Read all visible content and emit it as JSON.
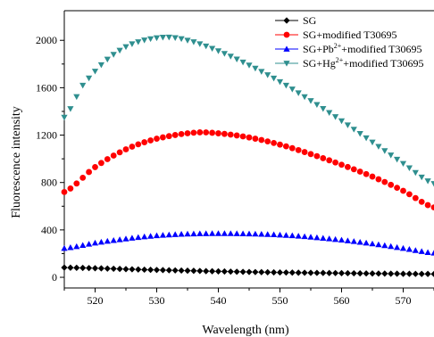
{
  "chart_data": {
    "type": "scatter",
    "title": "",
    "xlabel": "Wavelength (nm)",
    "ylabel": "Fluorescence intensity",
    "xlim": [
      515,
      575
    ],
    "ylim": [
      -90,
      2250
    ],
    "x_ticks": [
      520,
      530,
      540,
      550,
      560,
      570
    ],
    "y_ticks": [
      0,
      400,
      800,
      1200,
      1600,
      2000
    ],
    "grid": false,
    "legend_position": "top-right",
    "series": [
      {
        "name": "SG",
        "legend": {
          "parts": [
            {
              "text": "SG"
            }
          ]
        },
        "marker": "diamond",
        "color": "#000000",
        "x_range": [
          515,
          575
        ],
        "x_step": 1,
        "control_x": [
          515,
          530,
          545,
          560,
          575
        ],
        "control_y": [
          82,
          62,
          45,
          35,
          28
        ]
      },
      {
        "name": "SG+modified T30695",
        "legend": {
          "parts": [
            {
              "text": "SG+modified T30695"
            }
          ]
        },
        "marker": "circle",
        "color": "#ff0000",
        "x_range": [
          515,
          575
        ],
        "x_step": 1,
        "control_x": [
          515,
          520,
          525,
          530,
          536,
          540,
          545,
          550,
          555,
          560,
          565,
          570,
          575
        ],
        "control_y": [
          720,
          930,
          1080,
          1170,
          1220,
          1215,
          1180,
          1120,
          1040,
          950,
          850,
          730,
          590
        ]
      },
      {
        "name": "SG+Pb2++modified T30695",
        "legend": {
          "parts": [
            {
              "text": "SG+Pb"
            },
            {
              "text": "2+",
              "sup": true
            },
            {
              "text": "+modified T30695"
            }
          ]
        },
        "marker": "triangle-up",
        "color": "#0000ff",
        "x_range": [
          515,
          575
        ],
        "x_step": 1,
        "control_x": [
          515,
          520,
          525,
          530,
          535,
          540,
          545,
          550,
          555,
          560,
          565,
          570,
          575
        ],
        "control_y": [
          245,
          290,
          325,
          352,
          366,
          370,
          367,
          358,
          340,
          315,
          283,
          245,
          205
        ]
      },
      {
        "name": "SG+Hg2++modified T30695",
        "legend": {
          "parts": [
            {
              "text": "SG+Hg"
            },
            {
              "text": "2+",
              "sup": true
            },
            {
              "text": "+modified T30695"
            }
          ]
        },
        "marker": "triangle-down",
        "color": "#2f8f8f",
        "x_range": [
          515,
          575
        ],
        "x_step": 1,
        "control_x": [
          515,
          518,
          522,
          526,
          531,
          535,
          540,
          545,
          550,
          555,
          560,
          565,
          570,
          575
        ],
        "control_y": [
          1350,
          1620,
          1840,
          1970,
          2025,
          2000,
          1910,
          1790,
          1650,
          1490,
          1320,
          1140,
          960,
          790
        ]
      }
    ]
  }
}
